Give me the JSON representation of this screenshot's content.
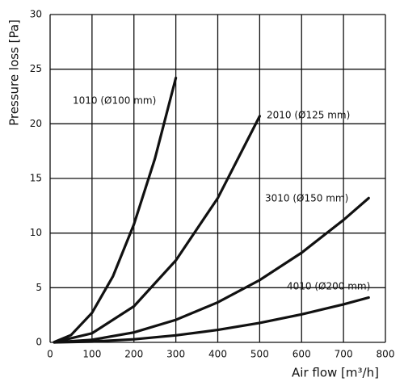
{
  "chart_data": {
    "type": "line",
    "x_label": "Air flow [m³/h]",
    "y_label": "Pressure loss [Pa]",
    "xlim": [
      0,
      800
    ],
    "xticks": [
      0,
      100,
      200,
      300,
      400,
      500,
      600,
      700,
      800
    ],
    "ylim": [
      0,
      30
    ],
    "yticks": [
      0,
      5,
      10,
      15,
      20,
      25,
      30
    ],
    "grid": true,
    "series": [
      {
        "name": "1010 (Ø100 mm)",
        "color": "#111111",
        "x": [
          10,
          50,
          100,
          150,
          200,
          250,
          300
        ],
        "values": [
          0.03,
          0.67,
          2.7,
          6.05,
          10.8,
          16.8,
          24.2
        ]
      },
      {
        "name": "2010 (Ø125 mm)",
        "color": "#111111",
        "x": [
          10,
          100,
          200,
          300,
          400,
          500
        ],
        "values": [
          0.01,
          0.83,
          3.3,
          7.5,
          13.2,
          20.7
        ]
      },
      {
        "name": "3010 (Ø150 mm)",
        "color": "#111111",
        "x": [
          10,
          100,
          200,
          300,
          400,
          500,
          600,
          700,
          760
        ],
        "values": [
          0,
          0.23,
          0.91,
          2.06,
          3.66,
          5.7,
          8.2,
          11.2,
          13.2
        ]
      },
      {
        "name": "4010 (Ø200 mm)",
        "color": "#111111",
        "x": [
          10,
          100,
          200,
          300,
          400,
          500,
          600,
          700,
          760
        ],
        "values": [
          0,
          0.07,
          0.28,
          0.64,
          1.14,
          1.78,
          2.56,
          3.48,
          4.1
        ]
      }
    ]
  }
}
